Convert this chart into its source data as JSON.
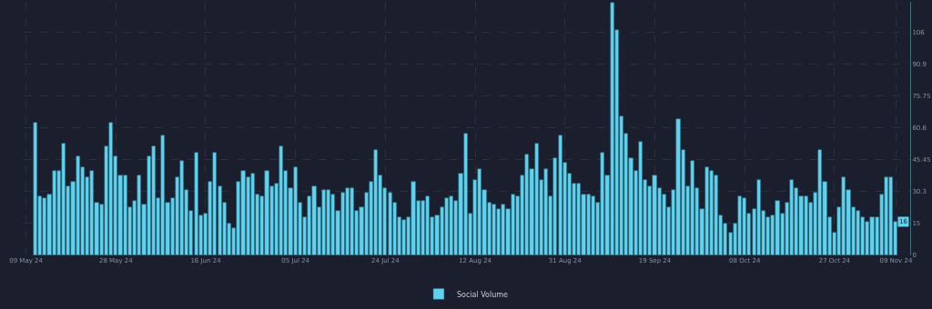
{
  "chart_data": {
    "type": "bar",
    "x": [
      "2024-05-11",
      "2024-05-12",
      "2024-05-13",
      "2024-05-14",
      "2024-05-15",
      "2024-05-16",
      "2024-05-17",
      "2024-05-18",
      "2024-05-19",
      "2024-05-20",
      "2024-05-21",
      "2024-05-22",
      "2024-05-23",
      "2024-05-24",
      "2024-05-25",
      "2024-05-26",
      "2024-05-27",
      "2024-05-28",
      "2024-05-29",
      "2024-05-30",
      "2024-05-31",
      "2024-06-01",
      "2024-06-02",
      "2024-06-03",
      "2024-06-04",
      "2024-06-05",
      "2024-06-06",
      "2024-06-07",
      "2024-06-08",
      "2024-06-09",
      "2024-06-10",
      "2024-06-11",
      "2024-06-12",
      "2024-06-13",
      "2024-06-14",
      "2024-06-15",
      "2024-06-16",
      "2024-06-17",
      "2024-06-18",
      "2024-06-19",
      "2024-06-20",
      "2024-06-21",
      "2024-06-22",
      "2024-06-23",
      "2024-06-24",
      "2024-06-25",
      "2024-06-26",
      "2024-06-27",
      "2024-06-28",
      "2024-06-29",
      "2024-06-30",
      "2024-07-01",
      "2024-07-02",
      "2024-07-03",
      "2024-07-04",
      "2024-07-05",
      "2024-07-06",
      "2024-07-07",
      "2024-07-08",
      "2024-07-09",
      "2024-07-10",
      "2024-07-11",
      "2024-07-12",
      "2024-07-13",
      "2024-07-14",
      "2024-07-15",
      "2024-07-16",
      "2024-07-17",
      "2024-07-18",
      "2024-07-19",
      "2024-07-20",
      "2024-07-21",
      "2024-07-22",
      "2024-07-23",
      "2024-07-24",
      "2024-07-25",
      "2024-07-26",
      "2024-07-27",
      "2024-07-28",
      "2024-07-29",
      "2024-07-30",
      "2024-07-31",
      "2024-08-01",
      "2024-08-02",
      "2024-08-03",
      "2024-08-04",
      "2024-08-05",
      "2024-08-06",
      "2024-08-07",
      "2024-08-08",
      "2024-08-09",
      "2024-08-10",
      "2024-08-11",
      "2024-08-12",
      "2024-08-13",
      "2024-08-14",
      "2024-08-15",
      "2024-08-16",
      "2024-08-17",
      "2024-08-18",
      "2024-08-19",
      "2024-08-20",
      "2024-08-21",
      "2024-08-22",
      "2024-08-23",
      "2024-08-24",
      "2024-08-25",
      "2024-08-26",
      "2024-08-27",
      "2024-08-28",
      "2024-08-29",
      "2024-08-30",
      "2024-08-31",
      "2024-09-01",
      "2024-09-02",
      "2024-09-03",
      "2024-09-04",
      "2024-09-05",
      "2024-09-06",
      "2024-09-07",
      "2024-09-08",
      "2024-09-09",
      "2024-09-10",
      "2024-09-11",
      "2024-09-12",
      "2024-09-13",
      "2024-09-14",
      "2024-09-15",
      "2024-09-16",
      "2024-09-17",
      "2024-09-18",
      "2024-09-19",
      "2024-09-20",
      "2024-09-21",
      "2024-09-22",
      "2024-09-23",
      "2024-09-24",
      "2024-09-25",
      "2024-09-26",
      "2024-09-27",
      "2024-09-28",
      "2024-09-29",
      "2024-09-30",
      "2024-10-01",
      "2024-10-02",
      "2024-10-03",
      "2024-10-04",
      "2024-10-05",
      "2024-10-06",
      "2024-10-07",
      "2024-10-08",
      "2024-10-09",
      "2024-10-10",
      "2024-10-11",
      "2024-10-12",
      "2024-10-13",
      "2024-10-14",
      "2024-10-15",
      "2024-10-16",
      "2024-10-17",
      "2024-10-18",
      "2024-10-19",
      "2024-10-20",
      "2024-10-21",
      "2024-10-22",
      "2024-10-23",
      "2024-10-24",
      "2024-10-25",
      "2024-10-26",
      "2024-10-27",
      "2024-10-28",
      "2024-10-29",
      "2024-10-30",
      "2024-10-31",
      "2024-11-01",
      "2024-11-02",
      "2024-11-03",
      "2024-11-04",
      "2024-11-05",
      "2024-11-06",
      "2024-11-07",
      "2024-11-08",
      "2024-11-09"
    ],
    "series": [
      {
        "name": "Social Volume",
        "color": "#5ed3f0",
        "values": [
          63,
          28,
          27,
          29,
          40,
          40,
          53,
          33,
          35,
          47,
          42,
          37,
          40,
          25,
          24,
          52,
          63,
          47,
          38,
          38,
          23,
          26,
          38,
          24,
          47,
          52,
          27,
          57,
          25,
          27,
          37,
          45,
          31,
          21,
          49,
          19,
          20,
          35,
          49,
          33,
          25,
          15,
          13,
          35,
          40,
          37,
          39,
          29,
          28,
          40,
          33,
          34,
          52,
          40,
          32,
          42,
          25,
          18,
          28,
          33,
          23,
          31,
          31,
          29,
          21,
          30,
          32,
          32,
          21,
          23,
          30,
          35,
          50,
          38,
          32,
          30,
          25,
          18,
          17,
          18,
          35,
          26,
          26,
          28,
          18,
          19,
          23,
          27,
          28,
          26,
          39,
          58,
          20,
          36,
          41,
          31,
          25,
          24,
          22,
          24,
          22,
          29,
          28,
          38,
          48,
          41,
          53,
          36,
          41,
          28,
          46,
          57,
          44,
          39,
          34,
          34,
          29,
          29,
          28,
          25,
          49,
          38,
          120,
          107,
          66,
          58,
          46,
          40,
          54,
          36,
          33,
          38,
          32,
          29,
          23,
          31,
          65,
          50,
          33,
          45,
          32,
          22,
          42,
          40,
          38,
          19,
          15,
          11,
          15,
          28,
          27,
          20,
          22,
          36,
          21,
          18,
          19,
          26,
          20,
          25,
          36,
          32,
          28,
          28,
          25,
          30,
          50,
          35,
          18,
          11,
          23,
          37,
          31,
          23,
          21,
          18,
          16,
          18,
          18,
          29,
          37,
          37,
          16
        ]
      }
    ],
    "xlim": [
      "2024-05-08T12:00",
      "2024-11-12"
    ],
    "xticks": [
      {
        "value": "2024-05-09",
        "label": "09 May 24"
      },
      {
        "value": "2024-05-28",
        "label": "28 May 24"
      },
      {
        "value": "2024-06-16",
        "label": "16 Jun 24"
      },
      {
        "value": "2024-07-05",
        "label": "05 Jul 24"
      },
      {
        "value": "2024-07-24",
        "label": "24 Jul 24"
      },
      {
        "value": "2024-08-12",
        "label": "12 Aug 24"
      },
      {
        "value": "2024-08-31",
        "label": "31 Aug 24"
      },
      {
        "value": "2024-09-19",
        "label": "19 Sep 24"
      },
      {
        "value": "2024-10-08",
        "label": "08 Oct 24"
      },
      {
        "value": "2024-10-27",
        "label": "27 Oct 24"
      },
      {
        "value": "2024-11-09",
        "label": "09 Nov 24"
      }
    ],
    "ylim": [
      0,
      120.5
    ],
    "yticks": [
      0,
      {
        "value": 15.15,
        "label": "15"
      },
      30.3,
      45.45,
      60.6,
      75.75,
      90.9,
      106
    ],
    "annotations": [
      {
        "text": "16",
        "y": 16
      }
    ],
    "grid": true,
    "legend": "bottom"
  }
}
